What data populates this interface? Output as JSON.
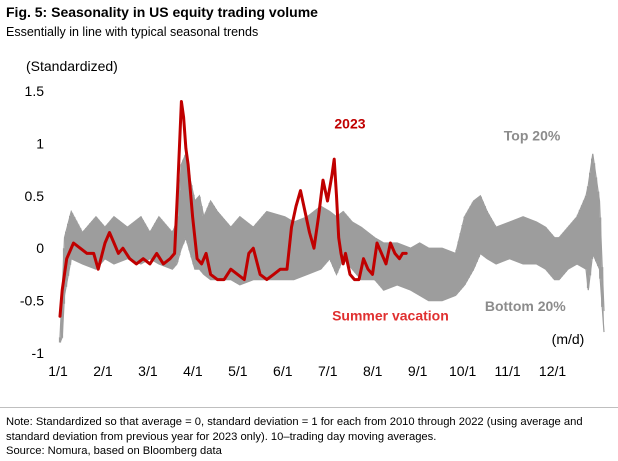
{
  "header": {
    "title": "Fig. 5: Seasonality in US equity trading volume",
    "subtitle": "Essentially in line with typical seasonal trends"
  },
  "footer": {
    "note": "Note: Standardized so that average = 0, standard deviation = 1 for each from 2010 through 2022 (using average and standard deviation from previous year for 2023 only). 10–trading day moving averages.",
    "source": "Source: Nomura, based on Bloomberg data"
  },
  "colors": {
    "band": "#9d9d9d",
    "line": "#c00000",
    "annotation_red": "#e03030",
    "annotation_gray": "#8c8c8c"
  },
  "chart_data": {
    "type": "area",
    "title": "Seasonality in US equity trading volume",
    "ylabel": "(Standardized)",
    "xlabel": "(m/d)",
    "ylim": [
      -1,
      1.5
    ],
    "xlim": [
      0,
      12.1
    ],
    "yticks": [
      -1,
      -0.5,
      0,
      0.5,
      1,
      1.5
    ],
    "ytick_labels": [
      "-1",
      "-0.5",
      "0",
      "0.5",
      "1",
      "1.5"
    ],
    "xticks": [
      0,
      1,
      2,
      3,
      4,
      5,
      6,
      7,
      8,
      9,
      10,
      11
    ],
    "xtick_labels": [
      "1/1",
      "2/1",
      "3/1",
      "4/1",
      "5/1",
      "6/1",
      "7/1",
      "8/1",
      "9/1",
      "10/1",
      "11/1",
      "12/1"
    ],
    "annotations": [
      {
        "text": "2023",
        "x": 6.45,
        "y": 1.14,
        "color": "#c00000"
      },
      {
        "text": "Top 20%",
        "x": 10.5,
        "y": 1.03,
        "color": "#8c8c8c"
      },
      {
        "text": "Summer vacation",
        "x": 7.35,
        "y": -0.69,
        "color": "#e03030"
      },
      {
        "text": "Bottom 20%",
        "x": 10.35,
        "y": -0.6,
        "color": "#8c8c8c"
      }
    ],
    "series": [
      {
        "name": "Top 20%",
        "x": [
          0,
          0.05,
          0.1,
          0.25,
          0.5,
          0.8,
          1.0,
          1.2,
          1.5,
          1.8,
          2.0,
          2.2,
          2.5,
          2.6,
          2.7,
          2.8,
          2.9,
          3.0,
          3.1,
          3.2,
          3.35,
          3.5,
          3.8,
          4.0,
          4.3,
          4.6,
          5.0,
          5.2,
          5.5,
          5.8,
          6.0,
          6.15,
          6.3,
          6.5,
          6.7,
          7.0,
          7.2,
          7.5,
          7.8,
          8.0,
          8.2,
          8.5,
          8.8,
          9.0,
          9.2,
          9.35,
          9.5,
          9.7,
          10.0,
          10.3,
          10.6,
          10.8,
          11.0,
          11.1,
          11.3,
          11.5,
          11.7,
          11.75,
          11.85,
          12.0,
          12.1
        ],
        "values": [
          -0.85,
          -0.4,
          0.1,
          0.35,
          0.15,
          0.3,
          0.2,
          0.3,
          0.2,
          0.3,
          0.15,
          0.3,
          0.15,
          0.25,
          0.8,
          0.9,
          0.65,
          0.45,
          0.5,
          0.3,
          0.45,
          0.35,
          0.2,
          0.3,
          0.2,
          0.35,
          0.3,
          0.25,
          0.3,
          0.4,
          0.35,
          0.3,
          0.35,
          0.25,
          0.2,
          0.1,
          0.05,
          0.05,
          0.0,
          0.05,
          0.0,
          0.0,
          -0.05,
          0.3,
          0.45,
          0.5,
          0.35,
          0.2,
          0.25,
          0.3,
          0.25,
          0.2,
          0.1,
          0.1,
          0.2,
          0.3,
          0.5,
          0.6,
          0.9,
          0.45,
          -0.6
        ]
      },
      {
        "name": "Bottom 20%",
        "x": [
          0,
          0.05,
          0.1,
          0.25,
          0.5,
          0.8,
          1.0,
          1.2,
          1.5,
          1.8,
          2.0,
          2.2,
          2.5,
          2.6,
          2.7,
          2.8,
          2.9,
          3.0,
          3.1,
          3.2,
          3.35,
          3.5,
          3.8,
          4.0,
          4.3,
          4.6,
          5.0,
          5.2,
          5.5,
          5.8,
          6.0,
          6.15,
          6.3,
          6.5,
          6.7,
          7.0,
          7.2,
          7.5,
          7.8,
          8.0,
          8.2,
          8.5,
          8.8,
          9.0,
          9.2,
          9.35,
          9.5,
          9.7,
          10.0,
          10.3,
          10.6,
          10.8,
          11.0,
          11.1,
          11.3,
          11.5,
          11.7,
          11.75,
          11.85,
          12.0,
          12.1
        ],
        "values": [
          -0.9,
          -0.85,
          -0.45,
          -0.1,
          -0.15,
          -0.2,
          -0.1,
          -0.15,
          -0.1,
          -0.15,
          -0.1,
          -0.15,
          -0.2,
          -0.15,
          0.0,
          0.1,
          -0.05,
          -0.2,
          -0.2,
          -0.25,
          -0.3,
          -0.3,
          -0.3,
          -0.35,
          -0.3,
          -0.3,
          -0.3,
          -0.3,
          -0.25,
          -0.2,
          -0.1,
          -0.25,
          -0.1,
          -0.2,
          -0.3,
          -0.3,
          -0.4,
          -0.35,
          -0.4,
          -0.45,
          -0.5,
          -0.5,
          -0.45,
          -0.35,
          -0.2,
          -0.05,
          -0.1,
          -0.15,
          -0.1,
          -0.15,
          -0.15,
          -0.2,
          -0.3,
          -0.3,
          -0.2,
          -0.15,
          -0.2,
          -0.4,
          -0.05,
          -0.2,
          -0.8
        ]
      },
      {
        "name": "2023",
        "x": [
          0,
          0.05,
          0.15,
          0.3,
          0.45,
          0.6,
          0.75,
          0.85,
          1.0,
          1.1,
          1.2,
          1.3,
          1.4,
          1.55,
          1.7,
          1.85,
          2.0,
          2.15,
          2.3,
          2.45,
          2.55,
          2.62,
          2.7,
          2.75,
          2.8,
          2.85,
          2.95,
          3.05,
          3.15,
          3.25,
          3.35,
          3.5,
          3.65,
          3.8,
          3.95,
          4.1,
          4.2,
          4.3,
          4.45,
          4.6,
          4.75,
          4.9,
          5.05,
          5.15,
          5.25,
          5.35,
          5.45,
          5.55,
          5.65,
          5.75,
          5.85,
          5.95,
          6.05,
          6.1,
          6.15,
          6.2,
          6.25,
          6.3,
          6.35,
          6.45,
          6.55,
          6.65,
          6.75,
          6.85,
          6.95,
          7.05,
          7.15,
          7.25,
          7.35,
          7.45,
          7.55,
          7.62,
          7.7
        ],
        "values": [
          -0.65,
          -0.4,
          -0.1,
          0.05,
          0.0,
          -0.05,
          -0.05,
          -0.2,
          0.05,
          0.15,
          0.05,
          -0.05,
          0.0,
          -0.1,
          -0.15,
          -0.1,
          -0.15,
          -0.05,
          -0.15,
          -0.1,
          -0.05,
          0.6,
          1.4,
          1.25,
          0.95,
          0.8,
          0.3,
          -0.1,
          -0.15,
          -0.05,
          -0.25,
          -0.3,
          -0.3,
          -0.2,
          -0.25,
          -0.3,
          -0.05,
          0.0,
          -0.25,
          -0.3,
          -0.25,
          -0.2,
          -0.2,
          0.2,
          0.4,
          0.55,
          0.35,
          0.15,
          0.0,
          0.3,
          0.65,
          0.45,
          0.7,
          0.85,
          0.5,
          0.1,
          -0.05,
          -0.15,
          -0.05,
          -0.25,
          -0.3,
          -0.3,
          -0.1,
          -0.2,
          -0.25,
          0.05,
          -0.05,
          -0.15,
          0.05,
          -0.05,
          -0.1,
          -0.05,
          -0.05
        ]
      }
    ]
  }
}
